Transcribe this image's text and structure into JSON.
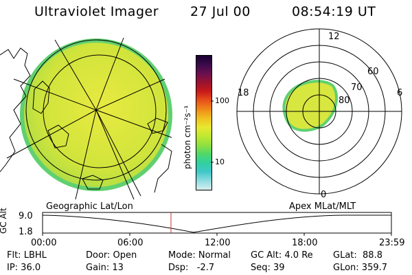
{
  "header": {
    "title": "Ultraviolet Imager",
    "date": "27 Jul 00",
    "time": "08:54:19 UT"
  },
  "colorbar": {
    "unit_label": "photon cm⁻²s⁻¹",
    "ticks": [
      "100",
      "10"
    ],
    "scale": "log",
    "colors": [
      "#1a0030",
      "#3a0a4a",
      "#6a1050",
      "#9a1230",
      "#c81a1a",
      "#e8501a",
      "#f08a1a",
      "#f0c020",
      "#e8e830",
      "#c0e830",
      "#90e040",
      "#50d868",
      "#30d0a0",
      "#40c8c8",
      "#90dce0",
      "#d8eef0"
    ]
  },
  "polar_plot": {
    "mlt_labels": [
      "12",
      "18",
      "6",
      "0"
    ],
    "lat_labels": [
      "60",
      "70",
      "80"
    ]
  },
  "timeline": {
    "left_label": "Geographic Lat/Lon",
    "right_label": "Apex MLat/MLT",
    "axis_title": "GC Alt",
    "y_ticks": [
      "9.0",
      "1.8"
    ],
    "x_ticks": [
      "00:00",
      "06:00",
      "12:00",
      "18:00",
      "23:59"
    ],
    "marker_time": "08:54:19"
  },
  "info": {
    "flt": "Flt: LBHL",
    "ip": "IP: 36.0",
    "door": "Door: Open",
    "gain": "Gain: 13",
    "mode": "Mode: Normal",
    "dsp": "Dsp:   -2.7",
    "gcalt": "GC Alt: 4.0 Re",
    "seq": "Seq: 39",
    "glat": "GLat:  88.8",
    "glon": "GLon: 359.7"
  },
  "colors": {
    "aurora_fill": "#d8e640",
    "aurora_edge": "#60d070",
    "marker": "#c83030"
  }
}
